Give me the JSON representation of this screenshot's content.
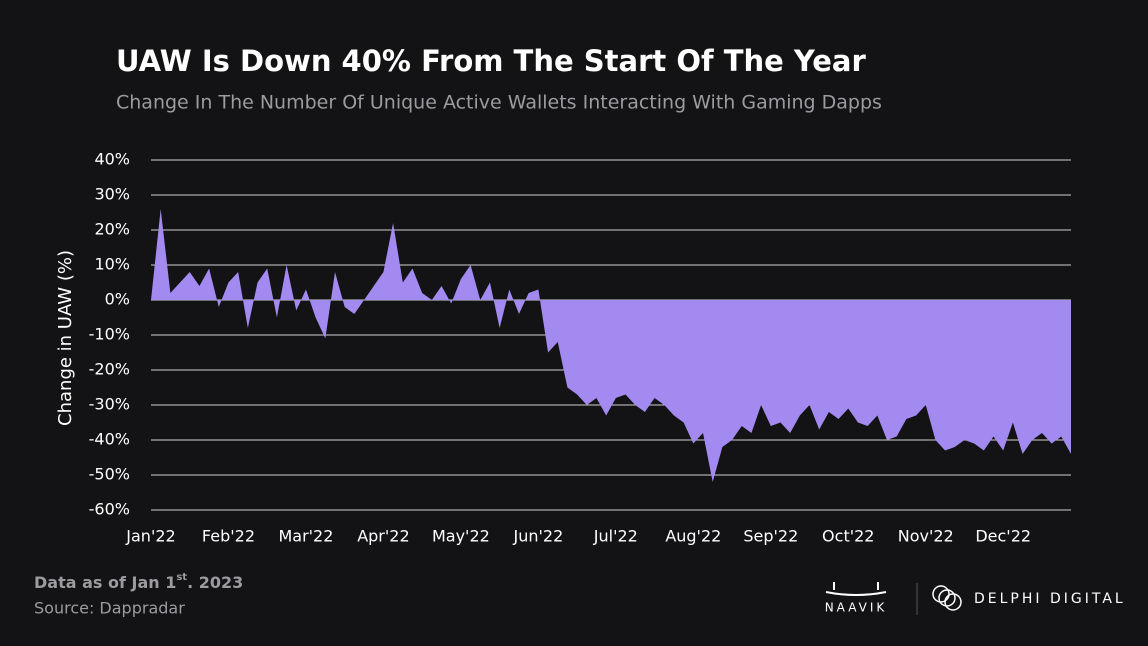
{
  "chart_data": {
    "type": "area",
    "title": "UAW Is Down 40% From The Start Of The Year",
    "subtitle": "Change In The Number Of Unique Active Wallets Interacting With Gaming Dapps",
    "y_label": "Change in UAW (%)",
    "color": "#a38af0",
    "grid": true,
    "ylim": [
      -60,
      40
    ],
    "yticks": [
      {
        "value": 40,
        "label": "40%"
      },
      {
        "value": 30,
        "label": "30%"
      },
      {
        "value": 20,
        "label": "20%"
      },
      {
        "value": 10,
        "label": "10%"
      },
      {
        "value": 0,
        "label": "0%"
      },
      {
        "value": -10,
        "label": "-10%"
      },
      {
        "value": -20,
        "label": "-20%"
      },
      {
        "value": -30,
        "label": "-30%"
      },
      {
        "value": -40,
        "label": "-40%"
      },
      {
        "value": -50,
        "label": "-50%"
      },
      {
        "value": -60,
        "label": "-60%"
      }
    ],
    "categories": [
      "Jan'22",
      null,
      null,
      null,
      null,
      null,
      null,
      null,
      "Feb'22",
      null,
      null,
      null,
      null,
      null,
      null,
      null,
      "Mar'22",
      null,
      null,
      null,
      null,
      null,
      null,
      null,
      "Apr'22",
      null,
      null,
      null,
      null,
      null,
      null,
      null,
      "May'22",
      null,
      null,
      null,
      null,
      null,
      null,
      null,
      "Jun'22",
      null,
      null,
      null,
      null,
      null,
      null,
      null,
      "Jul'22",
      null,
      null,
      null,
      null,
      null,
      null,
      null,
      "Aug'22",
      null,
      null,
      null,
      null,
      null,
      null,
      null,
      "Sep'22",
      null,
      null,
      null,
      null,
      null,
      null,
      null,
      "Oct'22",
      null,
      null,
      null,
      null,
      null,
      null,
      null,
      "Nov'22",
      null,
      null,
      null,
      null,
      null,
      null,
      null,
      "Dec'22",
      null,
      null,
      null,
      null,
      null,
      null,
      null
    ],
    "values": [
      0,
      26,
      2,
      5,
      8,
      4,
      9,
      -2,
      5,
      8,
      -8,
      5,
      9,
      -5,
      10,
      -3,
      3,
      -5,
      -11,
      8,
      -2,
      -4,
      0,
      4,
      8,
      22,
      5,
      9,
      2,
      0,
      4,
      -1,
      6,
      10,
      0,
      5,
      -8,
      3,
      -4,
      2,
      3,
      -15,
      -12,
      -25,
      -27,
      -30,
      -28,
      -33,
      -28,
      -27,
      -30,
      -32,
      -28,
      -30,
      -33,
      -35,
      -41,
      -38,
      -52,
      -42,
      -40,
      -36,
      -38,
      -30,
      -36,
      -35,
      -38,
      -33,
      -30,
      -37,
      -32,
      -34,
      -31,
      -35,
      -36,
      -33,
      -40,
      -39,
      -34,
      -33,
      -30,
      -40,
      -43,
      -42,
      -40,
      -41,
      -43,
      -39,
      -43,
      -35,
      -44,
      -40,
      -38,
      -41,
      -39,
      -44
    ]
  },
  "footer": {
    "note": "Data as of Jan 1",
    "note_sup": "st",
    "note_end": ". 2023",
    "source": "Source: Dappradar"
  },
  "logos": {
    "left": "NAAVIK",
    "right": "DELPHI DIGITAL"
  }
}
